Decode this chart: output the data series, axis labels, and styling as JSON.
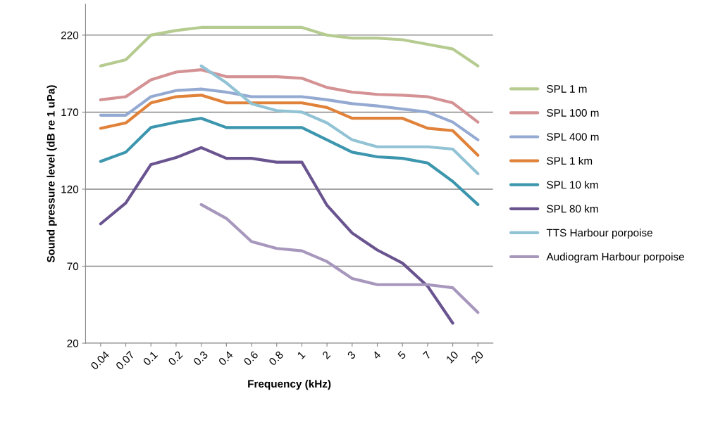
{
  "chart_data": {
    "type": "line",
    "xlabel": "Frequency (kHz)",
    "ylabel": "Sound pressure level (dB re 1 uPa)",
    "categories": [
      "0.04",
      "0.07",
      "0.1",
      "0.2",
      "0.3",
      "0.4",
      "0.6",
      "0.8",
      "1",
      "2",
      "3",
      "4",
      "5",
      "7",
      "10",
      "20"
    ],
    "ylim": [
      20,
      240
    ],
    "yticks": [
      20,
      70,
      120,
      170,
      220
    ],
    "grid": "y",
    "legend": "right",
    "marker": "none",
    "line_style": "solid",
    "series": [
      {
        "name": "SPL 1 m",
        "color": "#b5cb8f",
        "values": [
          200,
          204,
          220,
          223,
          225,
          225,
          225,
          225,
          225,
          220,
          218,
          218,
          217,
          214,
          211,
          200
        ]
      },
      {
        "name": "SPL 100 m",
        "color": "#d49294",
        "values": [
          178,
          180,
          191,
          196,
          197.5,
          193,
          193,
          193,
          192,
          186,
          183,
          181.5,
          181,
          180,
          176,
          163.5
        ]
      },
      {
        "name": "SPL 400 m",
        "color": "#94aad2",
        "values": [
          168,
          168,
          180,
          184,
          185,
          183,
          180,
          180,
          180,
          178,
          175.5,
          174,
          172,
          170,
          163.5,
          152
        ]
      },
      {
        "name": "SPL 1 km",
        "color": "#e0823a",
        "values": [
          159.5,
          163,
          176,
          180,
          181,
          176,
          176,
          176,
          176,
          173,
          166,
          166,
          166,
          159.5,
          158,
          142
        ]
      },
      {
        "name": "SPL 10 km",
        "color": "#3c96ae",
        "values": [
          138,
          144,
          160,
          163.5,
          166,
          160,
          160,
          160,
          160,
          152,
          144,
          141,
          140,
          137,
          125,
          110
        ]
      },
      {
        "name": "SPL 80 km",
        "color": "#6a5490",
        "values": [
          97.5,
          111,
          136,
          140.5,
          147,
          140,
          140,
          137.5,
          137.5,
          109.5,
          91.5,
          80.5,
          72,
          57,
          33,
          null
        ]
      },
      {
        "name": "TTS Harbour porpoise",
        "color": "#92c3d5",
        "values": [
          null,
          null,
          null,
          null,
          200,
          189,
          175.5,
          171,
          170,
          163,
          152,
          147.5,
          147.5,
          147.5,
          146,
          130
        ]
      },
      {
        "name": "Audiogram Harbour porpoise",
        "color": "#a797bd",
        "values": [
          null,
          null,
          null,
          null,
          110,
          101,
          86,
          81.5,
          80,
          73,
          62,
          58,
          58,
          58,
          56,
          40
        ]
      }
    ]
  }
}
